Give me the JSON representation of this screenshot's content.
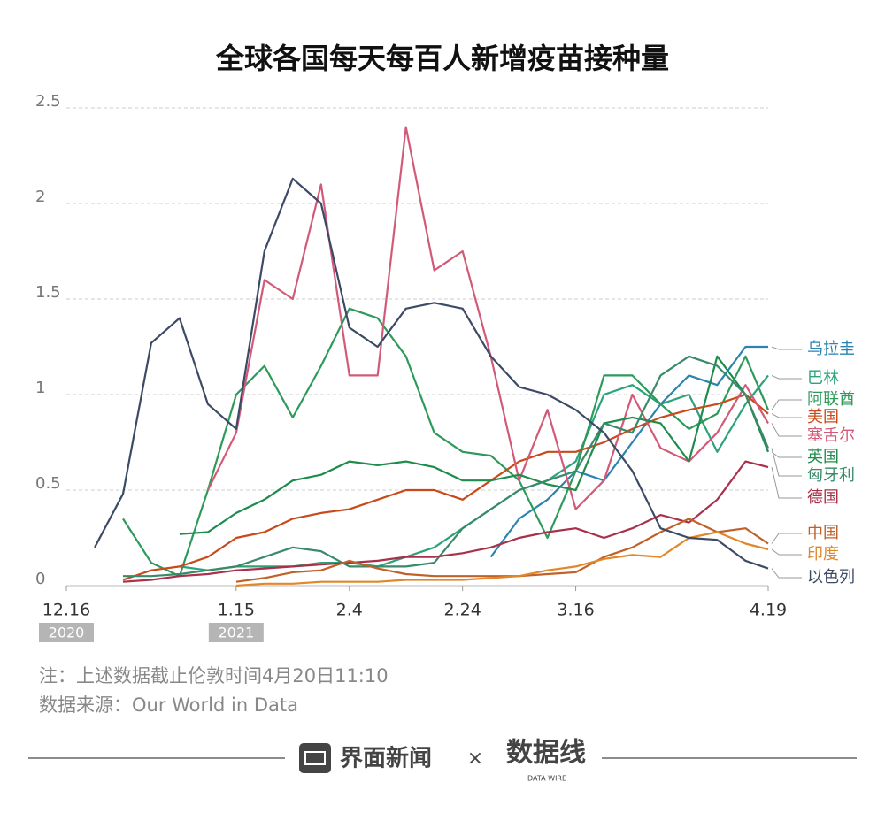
{
  "chart_data": {
    "type": "line",
    "title": "全球各国每天每百人新增疫苗接种量",
    "x": [
      "2020-12-16",
      "2020-12-21",
      "2020-12-26",
      "2020-12-31",
      "2021-01-05",
      "2021-01-10",
      "2021-01-15",
      "2021-01-20",
      "2021-01-25",
      "2021-01-30",
      "2021-02-04",
      "2021-02-09",
      "2021-02-14",
      "2021-02-19",
      "2021-02-24",
      "2021-03-01",
      "2021-03-06",
      "2021-03-11",
      "2021-03-16",
      "2021-03-21",
      "2021-03-26",
      "2021-03-31",
      "2021-04-05",
      "2021-04-10",
      "2021-04-15",
      "2021-04-19"
    ],
    "xlim": [
      "2020-12-16",
      "2021-04-19"
    ],
    "xticks": [
      {
        "value": "2020-12-16",
        "label": "12.16"
      },
      {
        "value": "2021-01-15",
        "label": "1.15"
      },
      {
        "value": "2021-02-04",
        "label": "2.4"
      },
      {
        "value": "2021-02-24",
        "label": "2.24"
      },
      {
        "value": "2021-03-16",
        "label": "3.16"
      },
      {
        "value": "2021-04-19",
        "label": "4.19"
      }
    ],
    "year_labels": [
      {
        "value": "2020-12-16",
        "label": "2020"
      },
      {
        "value": "2021-01-15",
        "label": "2021"
      }
    ],
    "ylim": [
      0,
      2.5
    ],
    "yticks": [
      0,
      0.5,
      1,
      1.5,
      2,
      2.5
    ],
    "grid": true,
    "series": [
      {
        "name": "乌拉圭",
        "color": "#2b83b0",
        "values": [
          null,
          null,
          null,
          null,
          null,
          null,
          null,
          null,
          null,
          null,
          null,
          null,
          null,
          null,
          null,
          0.15,
          0.35,
          0.45,
          0.6,
          0.55,
          0.75,
          0.95,
          1.1,
          1.05,
          1.25,
          1.25
        ]
      },
      {
        "name": "巴林",
        "color": "#2aa37a",
        "values": [
          null,
          null,
          null,
          null,
          0.1,
          0.08,
          0.1,
          0.1,
          0.1,
          0.12,
          0.12,
          0.1,
          0.15,
          0.2,
          0.3,
          0.4,
          0.5,
          0.55,
          0.65,
          1.0,
          1.05,
          0.95,
          1.0,
          0.7,
          0.95,
          1.1
        ]
      },
      {
        "name": "阿联酋",
        "color": "#2d9a5a",
        "values": [
          null,
          null,
          0.35,
          0.12,
          0.05,
          0.5,
          1.0,
          1.15,
          0.88,
          1.15,
          1.45,
          1.4,
          1.2,
          0.8,
          0.7,
          0.68,
          0.55,
          0.25,
          0.6,
          1.1,
          1.1,
          0.95,
          0.82,
          0.9,
          1.2,
          0.92
        ]
      },
      {
        "name": "美国",
        "color": "#c84a1a",
        "values": [
          null,
          null,
          0.03,
          0.08,
          0.1,
          0.15,
          0.25,
          0.28,
          0.35,
          0.38,
          0.4,
          0.45,
          0.5,
          0.5,
          0.45,
          0.55,
          0.65,
          0.7,
          0.7,
          0.75,
          0.82,
          0.88,
          0.92,
          0.95,
          1.0,
          0.9
        ]
      },
      {
        "name": "塞舌尔",
        "color": "#d25a78",
        "values": [
          null,
          null,
          null,
          null,
          null,
          0.5,
          0.8,
          1.6,
          1.5,
          2.1,
          1.1,
          1.1,
          2.4,
          1.65,
          1.75,
          1.2,
          0.55,
          0.92,
          0.4,
          0.55,
          1.0,
          0.72,
          0.65,
          0.8,
          1.05,
          0.85
        ]
      },
      {
        "name": "英国",
        "color": "#1e8c4c",
        "values": [
          null,
          null,
          null,
          null,
          0.27,
          0.28,
          0.38,
          0.45,
          0.55,
          0.58,
          0.65,
          0.63,
          0.65,
          0.62,
          0.55,
          0.55,
          0.58,
          0.53,
          0.5,
          0.85,
          0.88,
          0.85,
          0.65,
          1.2,
          1.0,
          0.7
        ]
      },
      {
        "name": "匈牙利",
        "color": "#3a8a6a",
        "values": [
          null,
          null,
          0.05,
          0.05,
          0.06,
          0.08,
          0.1,
          0.15,
          0.2,
          0.18,
          0.1,
          0.1,
          0.1,
          0.12,
          0.3,
          0.4,
          0.5,
          0.55,
          0.6,
          0.85,
          0.8,
          1.1,
          1.2,
          1.15,
          1.0,
          0.72
        ]
      },
      {
        "name": "德国",
        "color": "#a8304a",
        "values": [
          null,
          null,
          0.02,
          0.03,
          0.05,
          0.06,
          0.08,
          0.09,
          0.1,
          0.11,
          0.12,
          0.13,
          0.15,
          0.15,
          0.17,
          0.2,
          0.25,
          0.28,
          0.3,
          0.25,
          0.3,
          0.37,
          0.33,
          0.45,
          0.65,
          0.62
        ]
      },
      {
        "name": "中国",
        "color": "#c0602a",
        "values": [
          null,
          null,
          null,
          null,
          null,
          null,
          0.02,
          0.04,
          0.07,
          0.08,
          0.13,
          0.09,
          0.06,
          0.05,
          0.05,
          0.05,
          0.05,
          0.06,
          0.07,
          0.15,
          0.2,
          0.28,
          0.35,
          0.28,
          0.3,
          0.22
        ]
      },
      {
        "name": "印度",
        "color": "#e0872a",
        "values": [
          null,
          null,
          null,
          null,
          null,
          null,
          0.0,
          0.01,
          0.01,
          0.02,
          0.02,
          0.02,
          0.03,
          0.03,
          0.03,
          0.04,
          0.05,
          0.08,
          0.1,
          0.14,
          0.16,
          0.15,
          0.25,
          0.28,
          0.22,
          0.19
        ]
      },
      {
        "name": "以色列",
        "color": "#3c4a66",
        "values": [
          null,
          0.2,
          0.48,
          1.27,
          1.4,
          0.95,
          0.82,
          1.75,
          2.13,
          2.0,
          1.35,
          1.25,
          1.45,
          1.48,
          1.45,
          1.2,
          1.04,
          1.0,
          0.92,
          0.8,
          0.6,
          0.3,
          0.25,
          0.24,
          0.13,
          0.09
        ]
      }
    ],
    "notes": [
      "注：上述数据截止伦敦时间4月20日11:10",
      "数据来源：Our World in Data"
    ]
  },
  "footer": {
    "brand": "界面新闻",
    "times": "×",
    "partner": "数据线",
    "partner_sub": "DATA WIRE"
  }
}
